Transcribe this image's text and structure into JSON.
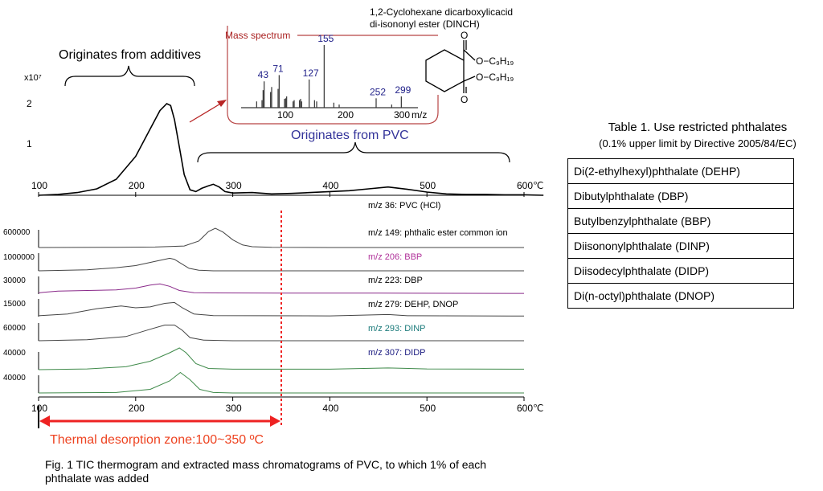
{
  "chart_data": [
    {
      "type": "line",
      "title": "",
      "xlabel": "℃",
      "y_multiplier": "x10⁷",
      "xlim": [
        100,
        600
      ],
      "ylim": [
        0,
        2.2
      ],
      "x_ticks": [
        "100",
        "200",
        "300",
        "400",
        "500",
        "600"
      ],
      "y_ticks": [
        "1",
        "2"
      ],
      "series": [
        {
          "x": [
            100,
            120,
            140,
            160,
            180,
            200,
            215,
            225,
            232,
            236,
            240,
            245,
            250,
            256,
            262,
            268,
            274,
            280,
            286,
            292,
            300,
            320,
            340,
            360,
            380,
            400,
            420,
            440,
            460,
            480,
            500,
            520,
            540,
            560,
            580,
            600,
            620
          ],
          "y": [
            0.0,
            0.02,
            0.06,
            0.14,
            0.35,
            0.85,
            1.45,
            1.85,
            2.0,
            1.96,
            1.65,
            1.05,
            0.45,
            0.12,
            0.08,
            0.15,
            0.2,
            0.24,
            0.18,
            0.08,
            0.05,
            0.06,
            0.03,
            0.04,
            0.06,
            0.08,
            0.1,
            0.14,
            0.18,
            0.13,
            0.07,
            0.03,
            0.02,
            0.02,
            0.01,
            0.01,
            0.0
          ],
          "color": "#000000"
        }
      ],
      "annotations": {
        "additives": "Originates from additives",
        "pvc": "Originates from PVC"
      }
    },
    {
      "type": "bar",
      "title": "Mass spectrum",
      "xlabel": "m/z",
      "xlim": [
        0,
        330
      ],
      "x_ticks": [
        "100",
        "200",
        "300"
      ],
      "peak_labels": [
        "43",
        "71",
        "127",
        "155",
        "252",
        "299"
      ],
      "peaks": [
        {
          "x": 29,
          "y": 0.1
        },
        {
          "x": 39,
          "y": 0.12
        },
        {
          "x": 41,
          "y": 0.28
        },
        {
          "x": 43,
          "y": 0.42
        },
        {
          "x": 55,
          "y": 0.25
        },
        {
          "x": 57,
          "y": 0.33
        },
        {
          "x": 69,
          "y": 0.3
        },
        {
          "x": 71,
          "y": 0.52
        },
        {
          "x": 81,
          "y": 0.14
        },
        {
          "x": 83,
          "y": 0.15
        },
        {
          "x": 85,
          "y": 0.18
        },
        {
          "x": 97,
          "y": 0.1
        },
        {
          "x": 99,
          "y": 0.12
        },
        {
          "x": 109,
          "y": 0.12
        },
        {
          "x": 111,
          "y": 0.14
        },
        {
          "x": 113,
          "y": 0.1
        },
        {
          "x": 127,
          "y": 0.45
        },
        {
          "x": 137,
          "y": 0.12
        },
        {
          "x": 141,
          "y": 0.1
        },
        {
          "x": 155,
          "y": 1.0
        },
        {
          "x": 173,
          "y": 0.08
        },
        {
          "x": 183,
          "y": 0.05
        },
        {
          "x": 252,
          "y": 0.15
        },
        {
          "x": 281,
          "y": 0.05
        },
        {
          "x": 299,
          "y": 0.18
        }
      ],
      "compound": "1,2-Cyclohexane dicarboxylicacid\ndi-isononyl ester (DINCH)",
      "substituents": [
        "O−C₉H₁₉",
        "O−C₉H₁₉"
      ]
    },
    {
      "type": "line",
      "title": "",
      "xlabel": "℃",
      "xlim": [
        100,
        600
      ],
      "x_ticks": [
        "100",
        "200",
        "300",
        "400",
        "500",
        "600"
      ],
      "series": [
        {
          "name": "m/z 36: PVC (HCl)",
          "color": "#444444",
          "scale_label": "600000",
          "label_color": "#000000",
          "x": [
            100,
            180,
            220,
            250,
            265,
            275,
            282,
            290,
            300,
            310,
            320,
            340,
            400,
            600
          ],
          "y": [
            0,
            0.01,
            0.02,
            0.06,
            0.25,
            0.62,
            0.75,
            0.6,
            0.3,
            0.1,
            0.03,
            0.01,
            0,
            0
          ]
        },
        {
          "name": "m/z 149: phthalic ester common ion",
          "color": "#444444",
          "scale_label": "1000000",
          "label_color": "#000000",
          "x": [
            100,
            150,
            180,
            200,
            220,
            235,
            240,
            245,
            255,
            265,
            280,
            400,
            600
          ],
          "y": [
            0,
            0.05,
            0.15,
            0.25,
            0.45,
            0.6,
            0.55,
            0.4,
            0.12,
            0.03,
            0,
            0,
            0
          ]
        },
        {
          "name": "m/z 206: BBP",
          "color": "#8a2a8a",
          "scale_label": "30000",
          "label_color": "#b0329a",
          "x": [
            100,
            105,
            120,
            150,
            180,
            200,
            215,
            225,
            235,
            245,
            260,
            280,
            350,
            450,
            600
          ],
          "y": [
            0.1,
            0.15,
            0.25,
            0.3,
            0.35,
            0.5,
            0.75,
            0.85,
            0.65,
            0.3,
            0.12,
            0.1,
            0.08,
            0.08,
            0.06
          ]
        },
        {
          "name": "m/z 223: DBP",
          "color": "#444444",
          "scale_label": "15000",
          "label_color": "#000000",
          "x": [
            100,
            130,
            160,
            185,
            200,
            215,
            230,
            240,
            248,
            260,
            280,
            330,
            400,
            460,
            480,
            600
          ],
          "y": [
            0.05,
            0.15,
            0.45,
            0.6,
            0.5,
            0.55,
            0.75,
            0.8,
            0.5,
            0.15,
            0.06,
            0.05,
            0.04,
            0.12,
            0.05,
            0.03
          ]
        },
        {
          "name": "m/z 279: DEHP, DNOP",
          "color": "#444444",
          "scale_label": "60000",
          "label_color": "#000000",
          "x": [
            100,
            150,
            190,
            215,
            230,
            240,
            248,
            256,
            270,
            300,
            600
          ],
          "y": [
            0,
            0.05,
            0.2,
            0.55,
            0.75,
            0.75,
            0.5,
            0.15,
            0.03,
            0,
            0
          ]
        },
        {
          "name": "m/z 293: DINP",
          "color": "#3f8a4a",
          "scale_label": "40000",
          "label_color": "#1a7a7a",
          "x": [
            100,
            150,
            190,
            215,
            235,
            245,
            252,
            262,
            275,
            300,
            400,
            460,
            500,
            600
          ],
          "y": [
            0,
            0.03,
            0.12,
            0.35,
            0.7,
            0.9,
            0.7,
            0.25,
            0.05,
            0.02,
            0.02,
            0.07,
            0.03,
            0.02
          ]
        },
        {
          "name": "m/z 307: DIDP",
          "color": "#3f8a4a",
          "scale_label": "40000",
          "label_color": "#1a1a80",
          "x": [
            100,
            180,
            215,
            235,
            246,
            256,
            266,
            280,
            300,
            600
          ],
          "y": [
            0,
            0.02,
            0.15,
            0.5,
            0.85,
            0.55,
            0.15,
            0.02,
            0,
            0
          ]
        }
      ],
      "zone": {
        "start": 100,
        "end": 350,
        "label": "Thermal desorption zone:100~350 ºC",
        "color": "#ee2222"
      }
    }
  ],
  "table": {
    "title": "Table 1. Use restricted phthalates",
    "subtitle": "(0.1% upper limit by Directive 2005/84/EC)",
    "rows": [
      "Di(2-ethylhexyl)phthalate (DEHP)",
      "Dibutylphthalate (DBP)",
      "Butylbenzylphthalate (BBP)",
      "Diisononylphthalate (DINP)",
      "Diisodecylphthalate (DIDP)",
      "Di(n-octyl)phthalate (DNOP)"
    ]
  },
  "caption": "Fig. 1 TIC thermogram and extracted mass chromatograms of PVC, to which 1% of each phthalate was added"
}
